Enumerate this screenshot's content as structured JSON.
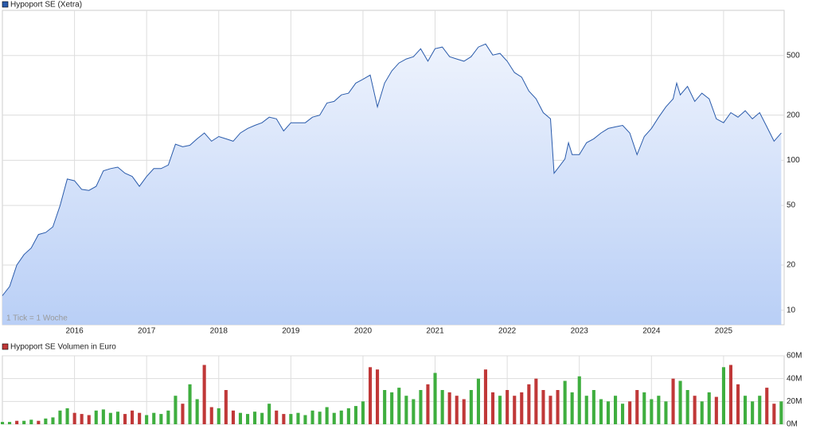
{
  "chart_data": [
    {
      "type": "line",
      "title": "Hypoport SE (Xetra)",
      "annotation": "1 Tick = 1 Woche",
      "color": "#2a5bab",
      "fill_colors": [
        "#eef3fd",
        "#b9cff6"
      ],
      "log_scale": true,
      "grid": true,
      "xlim": [
        2015.0,
        2025.84
      ],
      "xticks": [
        2016,
        2017,
        2018,
        2019,
        2020,
        2021,
        2022,
        2023,
        2024,
        2025
      ],
      "ylim": [
        8,
        1000
      ],
      "yticks": [
        10,
        20,
        50,
        100,
        200,
        500
      ],
      "x": [
        2015.0,
        2015.1,
        2015.2,
        2015.3,
        2015.4,
        2015.5,
        2015.6,
        2015.7,
        2015.8,
        2015.9,
        2016.0,
        2016.1,
        2016.2,
        2016.3,
        2016.4,
        2016.5,
        2016.6,
        2016.7,
        2016.8,
        2016.9,
        2017.0,
        2017.1,
        2017.2,
        2017.3,
        2017.4,
        2017.5,
        2017.6,
        2017.7,
        2017.8,
        2017.9,
        2018.0,
        2018.1,
        2018.2,
        2018.3,
        2018.4,
        2018.5,
        2018.6,
        2018.7,
        2018.8,
        2018.9,
        2019.0,
        2019.1,
        2019.2,
        2019.3,
        2019.4,
        2019.5,
        2019.6,
        2019.7,
        2019.8,
        2019.9,
        2020.0,
        2020.1,
        2020.2,
        2020.3,
        2020.4,
        2020.5,
        2020.6,
        2020.7,
        2020.8,
        2020.9,
        2021.0,
        2021.1,
        2021.2,
        2021.3,
        2021.4,
        2021.5,
        2021.6,
        2021.7,
        2021.8,
        2021.9,
        2022.0,
        2022.1,
        2022.2,
        2022.3,
        2022.4,
        2022.5,
        2022.6,
        2022.65,
        2022.7,
        2022.8,
        2022.85,
        2022.9,
        2023.0,
        2023.1,
        2023.2,
        2023.3,
        2023.4,
        2023.5,
        2023.6,
        2023.7,
        2023.8,
        2023.9,
        2024.0,
        2024.1,
        2024.2,
        2024.3,
        2024.35,
        2024.4,
        2024.5,
        2024.6,
        2024.7,
        2024.8,
        2024.9,
        2025.0,
        2025.1,
        2025.2,
        2025.3,
        2025.4,
        2025.5,
        2025.6,
        2025.7,
        2025.8
      ],
      "values": [
        12.5,
        14.4,
        20,
        23.5,
        26,
        32,
        33,
        36,
        50,
        75,
        73,
        64,
        63,
        67,
        85,
        88,
        90,
        82,
        78,
        67,
        78,
        88,
        88,
        93,
        128,
        123,
        126,
        139,
        152,
        134,
        144,
        139,
        134,
        152,
        163,
        171,
        178,
        194,
        189,
        157,
        178,
        178,
        178,
        194,
        200,
        241,
        247,
        273,
        280,
        327,
        347,
        370,
        227,
        327,
        395,
        446,
        474,
        491,
        555,
        458,
        555,
        569,
        491,
        474,
        458,
        491,
        569,
        596,
        503,
        516,
        458,
        385,
        358,
        290,
        257,
        208,
        189,
        82,
        88,
        102,
        131,
        109,
        109,
        131,
        139,
        152,
        163,
        167,
        171,
        152,
        109,
        144,
        163,
        194,
        227,
        257,
        327,
        273,
        311,
        247,
        280,
        257,
        189,
        178,
        208,
        194,
        214,
        189,
        208,
        167,
        134,
        152
      ]
    },
    {
      "type": "bar",
      "title": "Hypoport SE Volumen in Euro",
      "legend_color": "#c03838",
      "xlim": [
        2015.0,
        2025.84
      ],
      "ylim": [
        0,
        60000000
      ],
      "yticks": [
        {
          "value": 0,
          "label": "0M"
        },
        {
          "value": 20000000,
          "label": "20M"
        },
        {
          "value": 40000000,
          "label": "40M"
        },
        {
          "value": 60000000,
          "label": "60M"
        }
      ],
      "x": [
        2015.0,
        2015.1,
        2015.2,
        2015.3,
        2015.4,
        2015.5,
        2015.6,
        2015.7,
        2015.8,
        2015.9,
        2016.0,
        2016.1,
        2016.2,
        2016.3,
        2016.4,
        2016.5,
        2016.6,
        2016.7,
        2016.8,
        2016.9,
        2017.0,
        2017.1,
        2017.2,
        2017.3,
        2017.4,
        2017.5,
        2017.6,
        2017.7,
        2017.8,
        2017.9,
        2018.0,
        2018.1,
        2018.2,
        2018.3,
        2018.4,
        2018.5,
        2018.6,
        2018.7,
        2018.8,
        2018.9,
        2019.0,
        2019.1,
        2019.2,
        2019.3,
        2019.4,
        2019.5,
        2019.6,
        2019.7,
        2019.8,
        2019.9,
        2020.0,
        2020.1,
        2020.2,
        2020.3,
        2020.4,
        2020.5,
        2020.6,
        2020.7,
        2020.8,
        2020.9,
        2021.0,
        2021.1,
        2021.2,
        2021.3,
        2021.4,
        2021.5,
        2021.6,
        2021.7,
        2021.8,
        2021.9,
        2022.0,
        2022.1,
        2022.2,
        2022.3,
        2022.4,
        2022.5,
        2022.6,
        2022.7,
        2022.8,
        2022.9,
        2023.0,
        2023.1,
        2023.2,
        2023.3,
        2023.4,
        2023.5,
        2023.6,
        2023.7,
        2023.8,
        2023.9,
        2024.0,
        2024.1,
        2024.2,
        2024.3,
        2024.4,
        2024.5,
        2024.6,
        2024.7,
        2024.8,
        2024.9,
        2025.0,
        2025.1,
        2025.2,
        2025.3,
        2025.4,
        2025.5,
        2025.6,
        2025.7,
        2025.8
      ],
      "values": [
        2000000,
        2000000,
        3000000,
        3000000,
        4000000,
        3000000,
        5000000,
        6000000,
        12000000,
        14000000,
        10000000,
        9000000,
        8000000,
        12000000,
        13000000,
        10000000,
        11000000,
        9000000,
        12000000,
        10000000,
        8000000,
        10000000,
        9000000,
        12000000,
        25000000,
        18000000,
        35000000,
        22000000,
        52000000,
        15000000,
        14000000,
        30000000,
        12000000,
        10000000,
        9000000,
        11000000,
        10000000,
        18000000,
        12000000,
        9000000,
        9000000,
        10000000,
        8000000,
        12000000,
        11000000,
        15000000,
        10000000,
        12000000,
        14000000,
        16000000,
        20000000,
        50000000,
        48000000,
        30000000,
        28000000,
        32000000,
        25000000,
        22000000,
        30000000,
        35000000,
        45000000,
        30000000,
        28000000,
        25000000,
        22000000,
        30000000,
        40000000,
        48000000,
        28000000,
        25000000,
        30000000,
        25000000,
        28000000,
        35000000,
        40000000,
        30000000,
        25000000,
        30000000,
        38000000,
        28000000,
        42000000,
        25000000,
        30000000,
        22000000,
        20000000,
        25000000,
        18000000,
        20000000,
        30000000,
        28000000,
        22000000,
        25000000,
        20000000,
        40000000,
        38000000,
        30000000,
        25000000,
        20000000,
        28000000,
        24000000,
        50000000,
        52000000,
        35000000,
        25000000,
        20000000,
        25000000,
        32000000,
        18000000,
        20000000
      ],
      "colors": [
        "#3fae3f",
        "#3fae3f",
        "#c03838",
        "#3fae3f",
        "#3fae3f",
        "#c03838",
        "#3fae3f",
        "#3fae3f",
        "#3fae3f",
        "#3fae3f",
        "#c03838",
        "#c03838",
        "#c03838",
        "#3fae3f",
        "#3fae3f",
        "#3fae3f",
        "#3fae3f",
        "#c03838",
        "#c03838",
        "#c03838",
        "#3fae3f",
        "#3fae3f",
        "#3fae3f",
        "#3fae3f",
        "#3fae3f",
        "#c03838",
        "#3fae3f",
        "#3fae3f",
        "#c03838",
        "#c03838",
        "#3fae3f",
        "#c03838",
        "#c03838",
        "#3fae3f",
        "#3fae3f",
        "#3fae3f",
        "#3fae3f",
        "#3fae3f",
        "#c03838",
        "#c03838",
        "#3fae3f",
        "#3fae3f",
        "#3fae3f",
        "#3fae3f",
        "#3fae3f",
        "#3fae3f",
        "#3fae3f",
        "#3fae3f",
        "#3fae3f",
        "#3fae3f",
        "#3fae3f",
        "#c03838",
        "#c03838",
        "#3fae3f",
        "#3fae3f",
        "#3fae3f",
        "#3fae3f",
        "#3fae3f",
        "#3fae3f",
        "#c03838",
        "#3fae3f",
        "#3fae3f",
        "#c03838",
        "#c03838",
        "#c03838",
        "#3fae3f",
        "#3fae3f",
        "#c03838",
        "#c03838",
        "#3fae3f",
        "#c03838",
        "#c03838",
        "#c03838",
        "#c03838",
        "#c03838",
        "#c03838",
        "#c03838",
        "#c03838",
        "#3fae3f",
        "#3fae3f",
        "#3fae3f",
        "#3fae3f",
        "#3fae3f",
        "#3fae3f",
        "#3fae3f",
        "#3fae3f",
        "#3fae3f",
        "#c03838",
        "#c03838",
        "#3fae3f",
        "#3fae3f",
        "#3fae3f",
        "#3fae3f",
        "#c03838",
        "#3fae3f",
        "#3fae3f",
        "#c03838",
        "#3fae3f",
        "#3fae3f",
        "#c03838",
        "#3fae3f",
        "#c03838",
        "#c03838",
        "#3fae3f",
        "#3fae3f",
        "#3fae3f",
        "#c03838",
        "#c03838",
        "#3fae3f"
      ]
    }
  ]
}
